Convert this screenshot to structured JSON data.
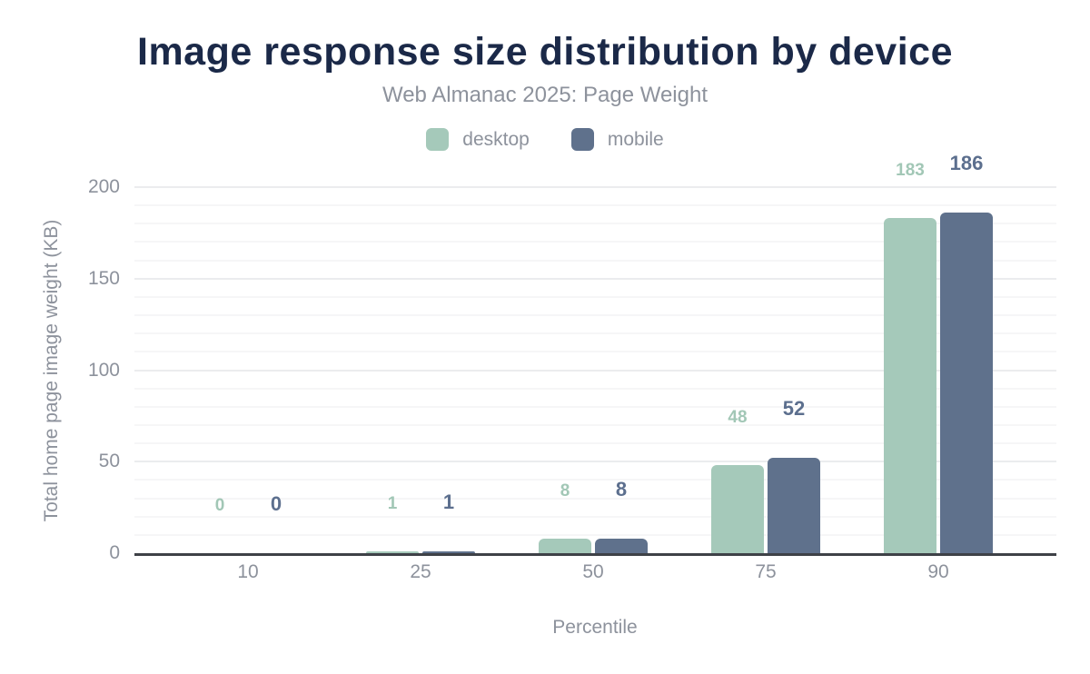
{
  "header": {
    "title": "Image response size distribution by device",
    "subtitle": "Web Almanac 2025: Page Weight"
  },
  "legend": {
    "items": [
      {
        "label": "desktop",
        "color": "#a5c9ba"
      },
      {
        "label": "mobile",
        "color": "#5f718c"
      }
    ]
  },
  "chart_data": {
    "type": "bar",
    "title": "Image response size distribution by device",
    "subtitle": "Web Almanac 2025: Page Weight",
    "categories": [
      "10",
      "25",
      "50",
      "75",
      "90"
    ],
    "series": [
      {
        "name": "desktop",
        "color": "#a5c9ba",
        "label_color": "#a2c7b6",
        "values": [
          0,
          1,
          8,
          48,
          183
        ]
      },
      {
        "name": "mobile",
        "color": "#5f718c",
        "label_color": "#5c6f8e",
        "values": [
          0,
          1,
          8,
          52,
          186
        ]
      }
    ],
    "xlabel": "Percentile",
    "ylabel": "Total home page image weight (KB)",
    "ylim": [
      0,
      200
    ],
    "y_major_ticks": [
      0,
      50,
      100,
      150,
      200
    ],
    "y_minor_step": 10,
    "grid": true,
    "legend_position": "top",
    "data_labels": true
  },
  "colors": {
    "title": "#1b2948",
    "muted_text": "#8d929c",
    "axis_line": "#3e4147",
    "grid_major": "#ebecee",
    "grid_minor": "#f6f6f7",
    "background": "#ffffff"
  }
}
